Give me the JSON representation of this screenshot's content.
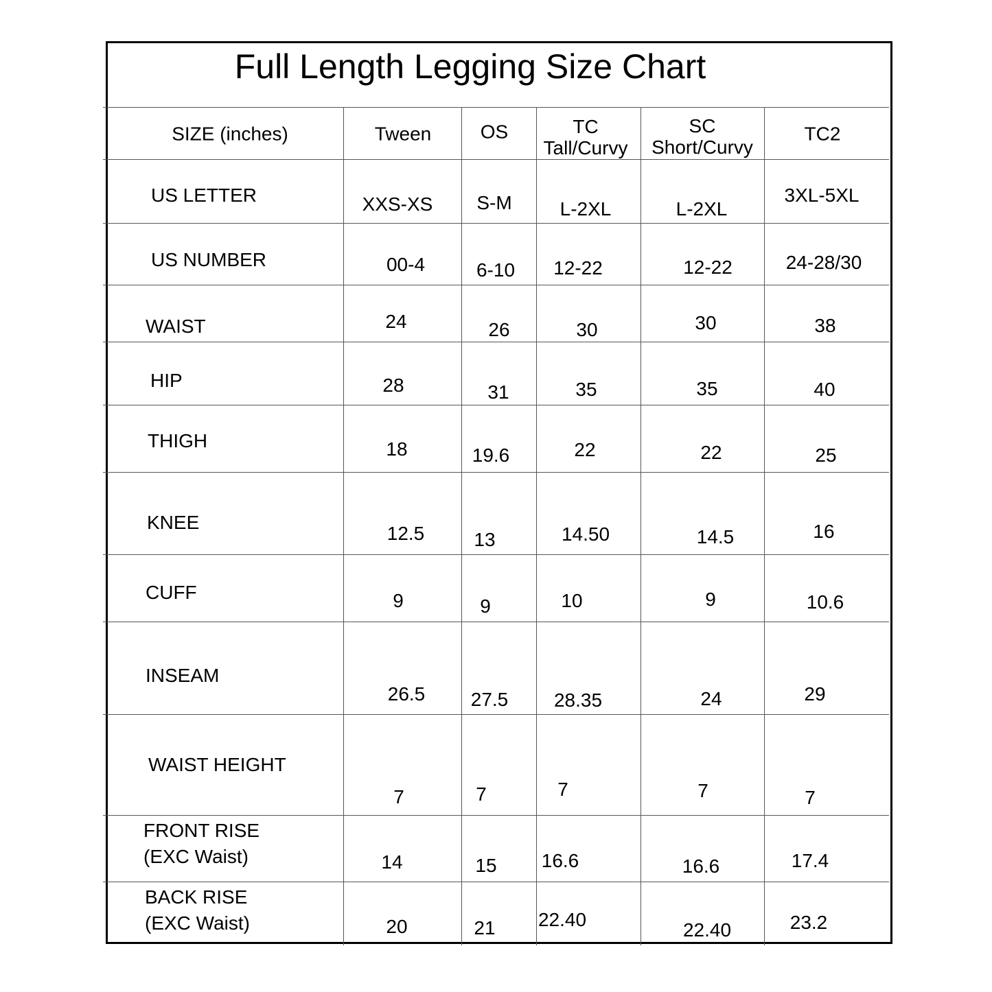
{
  "title": "Full Length Legging Size Chart",
  "header": [
    [
      "SIZE (inches)"
    ],
    [
      "Tween"
    ],
    [
      "OS"
    ],
    [
      "TC",
      "Tall/Curvy"
    ],
    [
      "SC",
      "Short/Curvy"
    ],
    [
      "TC2"
    ]
  ],
  "rows": [
    {
      "label": [
        "US LETTER"
      ],
      "values": [
        "XXS-XS",
        "S-M",
        "L-2XL",
        "L-2XL",
        "3XL-5XL"
      ]
    },
    {
      "label": [
        "US NUMBER"
      ],
      "values": [
        "00-4",
        "6-10",
        "12-22",
        "12-22",
        "24-28/30"
      ]
    },
    {
      "label": [
        "WAIST"
      ],
      "values": [
        "24",
        "26",
        "30",
        "30",
        "38"
      ]
    },
    {
      "label": [
        "HIP"
      ],
      "values": [
        "28",
        "31",
        "35",
        "35",
        "40"
      ]
    },
    {
      "label": [
        "THIGH"
      ],
      "values": [
        "18",
        "19.6",
        "22",
        "22",
        "25"
      ]
    },
    {
      "label": [
        "KNEE"
      ],
      "values": [
        "12.5",
        "13",
        "14.50",
        "14.5",
        "16"
      ]
    },
    {
      "label": [
        "CUFF"
      ],
      "values": [
        "9",
        "9",
        "10",
        "9",
        "10.6"
      ]
    },
    {
      "label": [
        "INSEAM"
      ],
      "values": [
        "26.5",
        "27.5",
        "28.35",
        "24",
        "29"
      ]
    },
    {
      "label": [
        "WAIST HEIGHT"
      ],
      "values": [
        "7",
        "7",
        "7",
        "7",
        "7"
      ]
    },
    {
      "label": [
        "FRONT RISE",
        "(EXC Waist)"
      ],
      "values": [
        "14",
        "15",
        "16.6",
        "16.6",
        "17.4"
      ]
    },
    {
      "label": [
        "BACK RISE",
        "(EXC Waist)"
      ],
      "values": [
        "20",
        "21",
        "22.40",
        "22.40",
        "23.2"
      ]
    }
  ]
}
